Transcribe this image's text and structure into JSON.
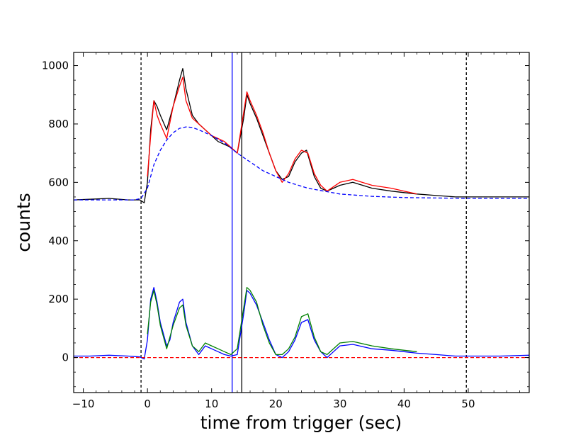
{
  "chart_data": {
    "type": "line",
    "xlabel": "time from trigger (sec)",
    "ylabel": "counts",
    "xlim": [
      -11.5,
      59.5
    ],
    "ylim": [
      -120,
      1045
    ],
    "x_ticks": [
      -10,
      0,
      10,
      20,
      30,
      40,
      50
    ],
    "x_tick_labels": [
      "−10",
      "0",
      "10",
      "20",
      "30",
      "40",
      "50"
    ],
    "y_ticks": [
      0,
      200,
      400,
      600,
      800,
      1000
    ],
    "y_tick_labels": [
      "0",
      "200",
      "400",
      "600",
      "800",
      "1000"
    ],
    "grid": false,
    "legend": "none",
    "vertical_lines": [
      {
        "x": -1.0,
        "color": "#000000",
        "style": "dashed"
      },
      {
        "x": 13.2,
        "color": "#0000ff",
        "style": "solid"
      },
      {
        "x": 14.7,
        "color": "#000000",
        "style": "solid"
      },
      {
        "x": 49.7,
        "color": "#000000",
        "style": "dashed"
      }
    ],
    "series": [
      {
        "color": "#000000",
        "values_xy": [
          [
            -11.5,
            540
          ],
          [
            -9,
            542
          ],
          [
            -6,
            545
          ],
          [
            -3,
            540
          ],
          [
            -1.2,
            540
          ],
          [
            -0.5,
            530
          ],
          [
            0,
            600
          ],
          [
            0.5,
            780
          ],
          [
            1,
            880
          ],
          [
            1.5,
            860
          ],
          [
            2,
            830
          ],
          [
            3,
            780
          ],
          [
            4,
            860
          ],
          [
            5,
            950
          ],
          [
            5.5,
            990
          ],
          [
            6,
            920
          ],
          [
            7,
            830
          ],
          [
            8,
            800
          ],
          [
            9,
            780
          ],
          [
            10,
            760
          ],
          [
            11,
            740
          ],
          [
            12,
            730
          ],
          [
            13,
            720
          ],
          [
            14,
            700
          ],
          [
            15,
            820
          ],
          [
            15.5,
            900
          ],
          [
            16,
            870
          ],
          [
            17,
            820
          ],
          [
            18,
            760
          ],
          [
            19,
            700
          ],
          [
            20,
            640
          ],
          [
            21,
            610
          ],
          [
            22,
            620
          ],
          [
            23,
            670
          ],
          [
            24,
            700
          ],
          [
            24.8,
            710
          ],
          [
            26,
            620
          ],
          [
            27,
            580
          ],
          [
            28,
            570
          ],
          [
            29,
            580
          ],
          [
            30,
            590
          ],
          [
            32,
            600
          ],
          [
            35,
            580
          ],
          [
            38,
            570
          ],
          [
            40,
            565
          ],
          [
            42,
            560
          ],
          [
            45,
            555
          ],
          [
            48,
            550
          ],
          [
            52,
            550
          ],
          [
            55,
            550
          ],
          [
            59.5,
            550
          ]
        ]
      },
      {
        "color": "#ff0000",
        "values_xy": [
          [
            0,
            620
          ],
          [
            0.5,
            760
          ],
          [
            1,
            880
          ],
          [
            1.5,
            830
          ],
          [
            2,
            800
          ],
          [
            3,
            750
          ],
          [
            4,
            860
          ],
          [
            5,
            930
          ],
          [
            5.5,
            960
          ],
          [
            6,
            880
          ],
          [
            7,
            820
          ],
          [
            8,
            800
          ],
          [
            9,
            780
          ],
          [
            10,
            760
          ],
          [
            11,
            750
          ],
          [
            12,
            740
          ],
          [
            13,
            720
          ],
          [
            14,
            700
          ],
          [
            15,
            840
          ],
          [
            15.5,
            910
          ],
          [
            16,
            880
          ],
          [
            17,
            830
          ],
          [
            18,
            770
          ],
          [
            19,
            700
          ],
          [
            20,
            640
          ],
          [
            21,
            600
          ],
          [
            22,
            630
          ],
          [
            23,
            680
          ],
          [
            24,
            710
          ],
          [
            25,
            700
          ],
          [
            26,
            630
          ],
          [
            27,
            590
          ],
          [
            28,
            570
          ],
          [
            30,
            600
          ],
          [
            32,
            610
          ],
          [
            35,
            590
          ],
          [
            38,
            580
          ],
          [
            40,
            570
          ],
          [
            42,
            560
          ]
        ]
      },
      {
        "color": "#0000ff",
        "style": "dashed",
        "values_xy": [
          [
            -11.5,
            540
          ],
          [
            -2,
            540
          ],
          [
            -1,
            545
          ],
          [
            0,
            580
          ],
          [
            1,
            660
          ],
          [
            2,
            710
          ],
          [
            3,
            745
          ],
          [
            4,
            770
          ],
          [
            5,
            785
          ],
          [
            6,
            790
          ],
          [
            7,
            788
          ],
          [
            8,
            780
          ],
          [
            10,
            760
          ],
          [
            12,
            735
          ],
          [
            14,
            700
          ],
          [
            16,
            670
          ],
          [
            18,
            640
          ],
          [
            20,
            620
          ],
          [
            22,
            600
          ],
          [
            25,
            580
          ],
          [
            30,
            560
          ],
          [
            35,
            552
          ],
          [
            40,
            548
          ],
          [
            50,
            545
          ],
          [
            59.5,
            545
          ]
        ]
      },
      {
        "color": "#0000ff",
        "values_xy": [
          [
            -11.5,
            5
          ],
          [
            -9,
            5
          ],
          [
            -6,
            8
          ],
          [
            -3,
            5
          ],
          [
            -1.2,
            2
          ],
          [
            -0.5,
            -5
          ],
          [
            0,
            60
          ],
          [
            0.5,
            200
          ],
          [
            1,
            240
          ],
          [
            1.5,
            190
          ],
          [
            2,
            120
          ],
          [
            3,
            40
          ],
          [
            3.5,
            60
          ],
          [
            4,
            120
          ],
          [
            5,
            190
          ],
          [
            5.5,
            200
          ],
          [
            6,
            120
          ],
          [
            7,
            40
          ],
          [
            8,
            10
          ],
          [
            9,
            40
          ],
          [
            10,
            30
          ],
          [
            11,
            20
          ],
          [
            12,
            10
          ],
          [
            13,
            5
          ],
          [
            14,
            10
          ],
          [
            15,
            150
          ],
          [
            15.5,
            230
          ],
          [
            16,
            220
          ],
          [
            17,
            180
          ],
          [
            18,
            120
          ],
          [
            19,
            60
          ],
          [
            20,
            10
          ],
          [
            21,
            0
          ],
          [
            22,
            20
          ],
          [
            23,
            60
          ],
          [
            24,
            120
          ],
          [
            25,
            130
          ],
          [
            26,
            60
          ],
          [
            27,
            20
          ],
          [
            28,
            0
          ],
          [
            29,
            20
          ],
          [
            30,
            40
          ],
          [
            32,
            45
          ],
          [
            35,
            30
          ],
          [
            38,
            25
          ],
          [
            40,
            20
          ],
          [
            42,
            15
          ],
          [
            45,
            10
          ],
          [
            48,
            5
          ],
          [
            52,
            5
          ],
          [
            55,
            5
          ],
          [
            59.5,
            8
          ]
        ]
      },
      {
        "color": "#008000",
        "values_xy": [
          [
            0,
            80
          ],
          [
            0.5,
            190
          ],
          [
            1,
            230
          ],
          [
            1.5,
            180
          ],
          [
            2,
            110
          ],
          [
            3,
            30
          ],
          [
            4,
            110
          ],
          [
            5,
            170
          ],
          [
            5.5,
            180
          ],
          [
            6,
            110
          ],
          [
            7,
            40
          ],
          [
            8,
            20
          ],
          [
            9,
            50
          ],
          [
            10,
            40
          ],
          [
            11,
            30
          ],
          [
            12,
            20
          ],
          [
            13,
            10
          ],
          [
            14,
            30
          ],
          [
            15,
            170
          ],
          [
            15.5,
            240
          ],
          [
            16,
            230
          ],
          [
            17,
            190
          ],
          [
            18,
            110
          ],
          [
            19,
            50
          ],
          [
            20,
            10
          ],
          [
            21,
            10
          ],
          [
            22,
            30
          ],
          [
            23,
            70
          ],
          [
            24,
            140
          ],
          [
            25,
            150
          ],
          [
            26,
            70
          ],
          [
            27,
            20
          ],
          [
            28,
            10
          ],
          [
            30,
            50
          ],
          [
            32,
            55
          ],
          [
            35,
            40
          ],
          [
            38,
            30
          ],
          [
            40,
            25
          ],
          [
            42,
            20
          ]
        ]
      },
      {
        "color": "#ff0000",
        "style": "dashed",
        "values_xy": [
          [
            -11.5,
            0
          ],
          [
            59.5,
            0
          ]
        ]
      }
    ]
  }
}
